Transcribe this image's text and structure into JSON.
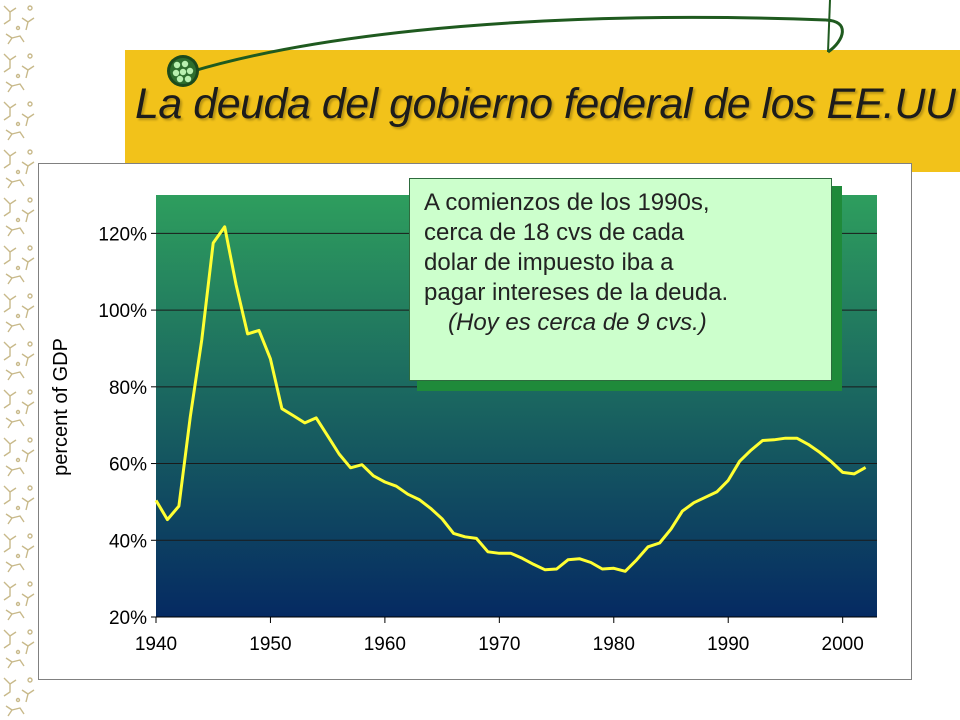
{
  "slide": {
    "title": "La deuda del gobierno federal de los EE.UU"
  },
  "callout": {
    "lines": [
      "A comienzos de los 1990s,",
      "cerca de 18 cvs de cada",
      "dolar de impuesto iba a",
      "pagar intereses de la deuda."
    ],
    "note": "(Hoy es cerca de 9 cvs.)"
  },
  "chart_data": {
    "type": "line",
    "title": "",
    "xlabel": "",
    "ylabel": "percent of GDP",
    "xlim": [
      1940,
      2003
    ],
    "ylim": [
      20,
      130
    ],
    "x_ticks": [
      1940,
      1950,
      1960,
      1970,
      1980,
      1990,
      2000
    ],
    "y_ticks": [
      20,
      40,
      60,
      80,
      100,
      120
    ],
    "y_tick_labels": [
      "20%",
      "40%",
      "60%",
      "80%",
      "100%",
      "120%"
    ],
    "grid": "horizontal",
    "colors": {
      "line": "#ffff33",
      "plot_top": "#2e9e5e",
      "plot_bottom": "#052a62"
    },
    "series": [
      {
        "x": [
          1940,
          1941,
          1942,
          1943,
          1944,
          1945,
          1946,
          1947,
          1948,
          1949,
          1950,
          1951,
          1952,
          1953,
          1954,
          1955,
          1956,
          1957,
          1958,
          1959,
          1960,
          1961,
          1962,
          1963,
          1964,
          1965,
          1966,
          1967,
          1968,
          1969,
          1970,
          1971,
          1972,
          1973,
          1974,
          1975,
          1976,
          1977,
          1978,
          1979,
          1980,
          1981,
          1982,
          1983,
          1984,
          1985,
          1986,
          1987,
          1988,
          1989,
          1990,
          1991,
          1992,
          1993,
          1994,
          1995,
          1996,
          1997,
          1998,
          1999,
          2000,
          2001,
          2002
        ],
        "values": [
          50.4,
          45.4,
          48.9,
          72.2,
          92.3,
          117.5,
          121.7,
          106.6,
          93.8,
          94.7,
          87.3,
          74.3,
          72.5,
          70.6,
          71.9,
          67.2,
          62.5,
          58.9,
          59.7,
          56.8,
          55.2,
          54.1,
          52.0,
          50.6,
          48.3,
          45.6,
          41.8,
          40.9,
          40.5,
          37.0,
          36.6,
          36.6,
          35.3,
          33.7,
          32.3,
          32.5,
          34.9,
          35.2,
          34.2,
          32.5,
          32.7,
          31.9,
          34.9,
          38.3,
          39.3,
          42.9,
          47.6,
          49.8,
          51.2,
          52.6,
          55.6,
          60.6,
          63.5,
          66.0,
          66.2,
          66.6,
          66.6,
          65.0,
          62.9,
          60.5,
          57.7,
          57.3,
          59.0
        ]
      }
    ]
  }
}
